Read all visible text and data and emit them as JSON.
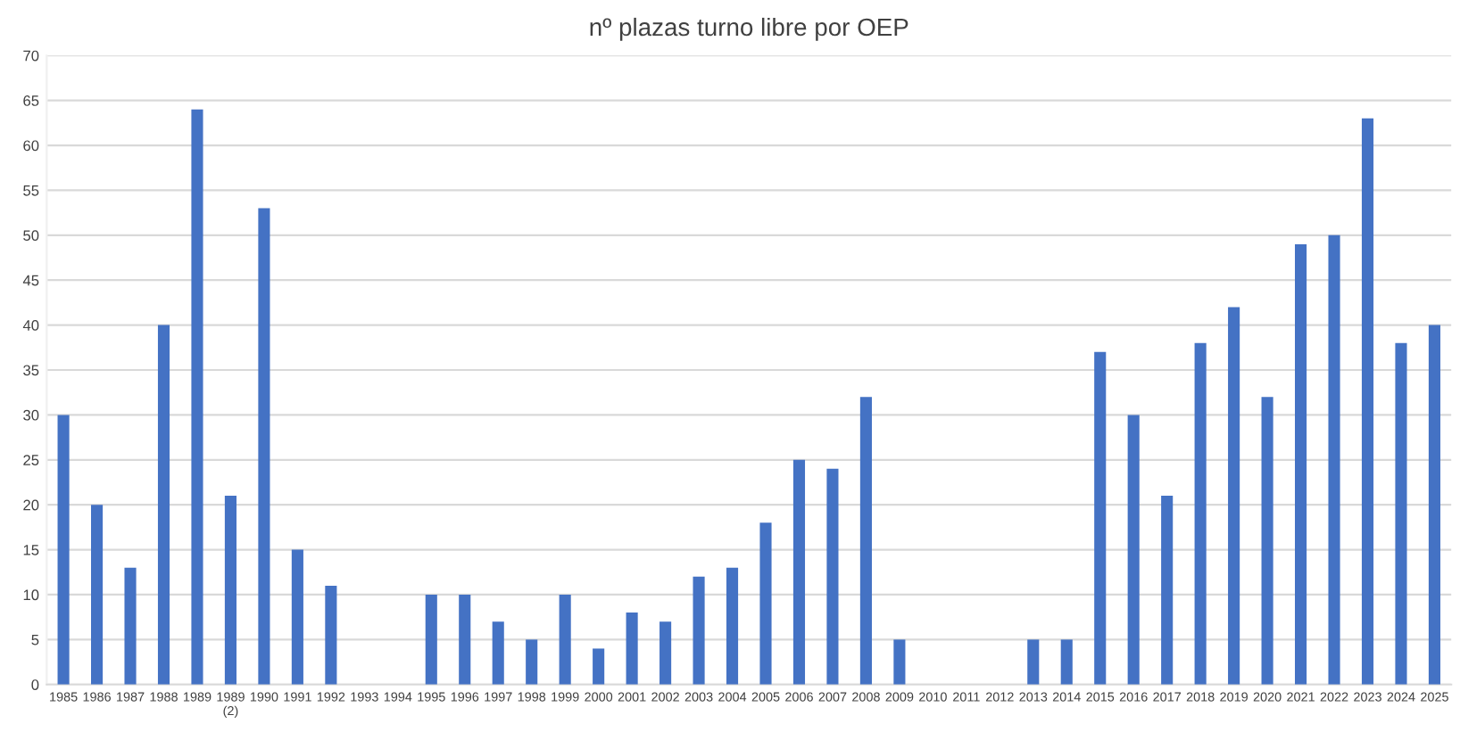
{
  "chart_data": {
    "type": "bar",
    "title": "nº plazas turno libre por OEP",
    "categories": [
      "1985",
      "1986",
      "1987",
      "1988",
      "1989",
      "1989\n(2)",
      "1990",
      "1991",
      "1992",
      "1993",
      "1994",
      "1995",
      "1996",
      "1997",
      "1998",
      "1999",
      "2000",
      "2001",
      "2002",
      "2003",
      "2004",
      "2005",
      "2006",
      "2007",
      "2008",
      "2009",
      "2010",
      "2011",
      "2012",
      "2013",
      "2014",
      "2015",
      "2016",
      "2017",
      "2018",
      "2019",
      "2020",
      "2021",
      "2022",
      "2023",
      "2024",
      "2025"
    ],
    "values": [
      30,
      20,
      13,
      40,
      64,
      21,
      53,
      15,
      11,
      0,
      0,
      10,
      10,
      7,
      5,
      10,
      4,
      8,
      7,
      12,
      13,
      18,
      25,
      24,
      32,
      5,
      0,
      0,
      0,
      5,
      5,
      37,
      30,
      21,
      38,
      42,
      32,
      49,
      50,
      63,
      38,
      40
    ],
    "color": "#4472c4",
    "ylim": [
      0,
      70
    ],
    "yticks": [
      0,
      5,
      10,
      15,
      20,
      25,
      30,
      35,
      40,
      45,
      50,
      55,
      60,
      65,
      70
    ],
    "grid": "y",
    "legend": false
  }
}
